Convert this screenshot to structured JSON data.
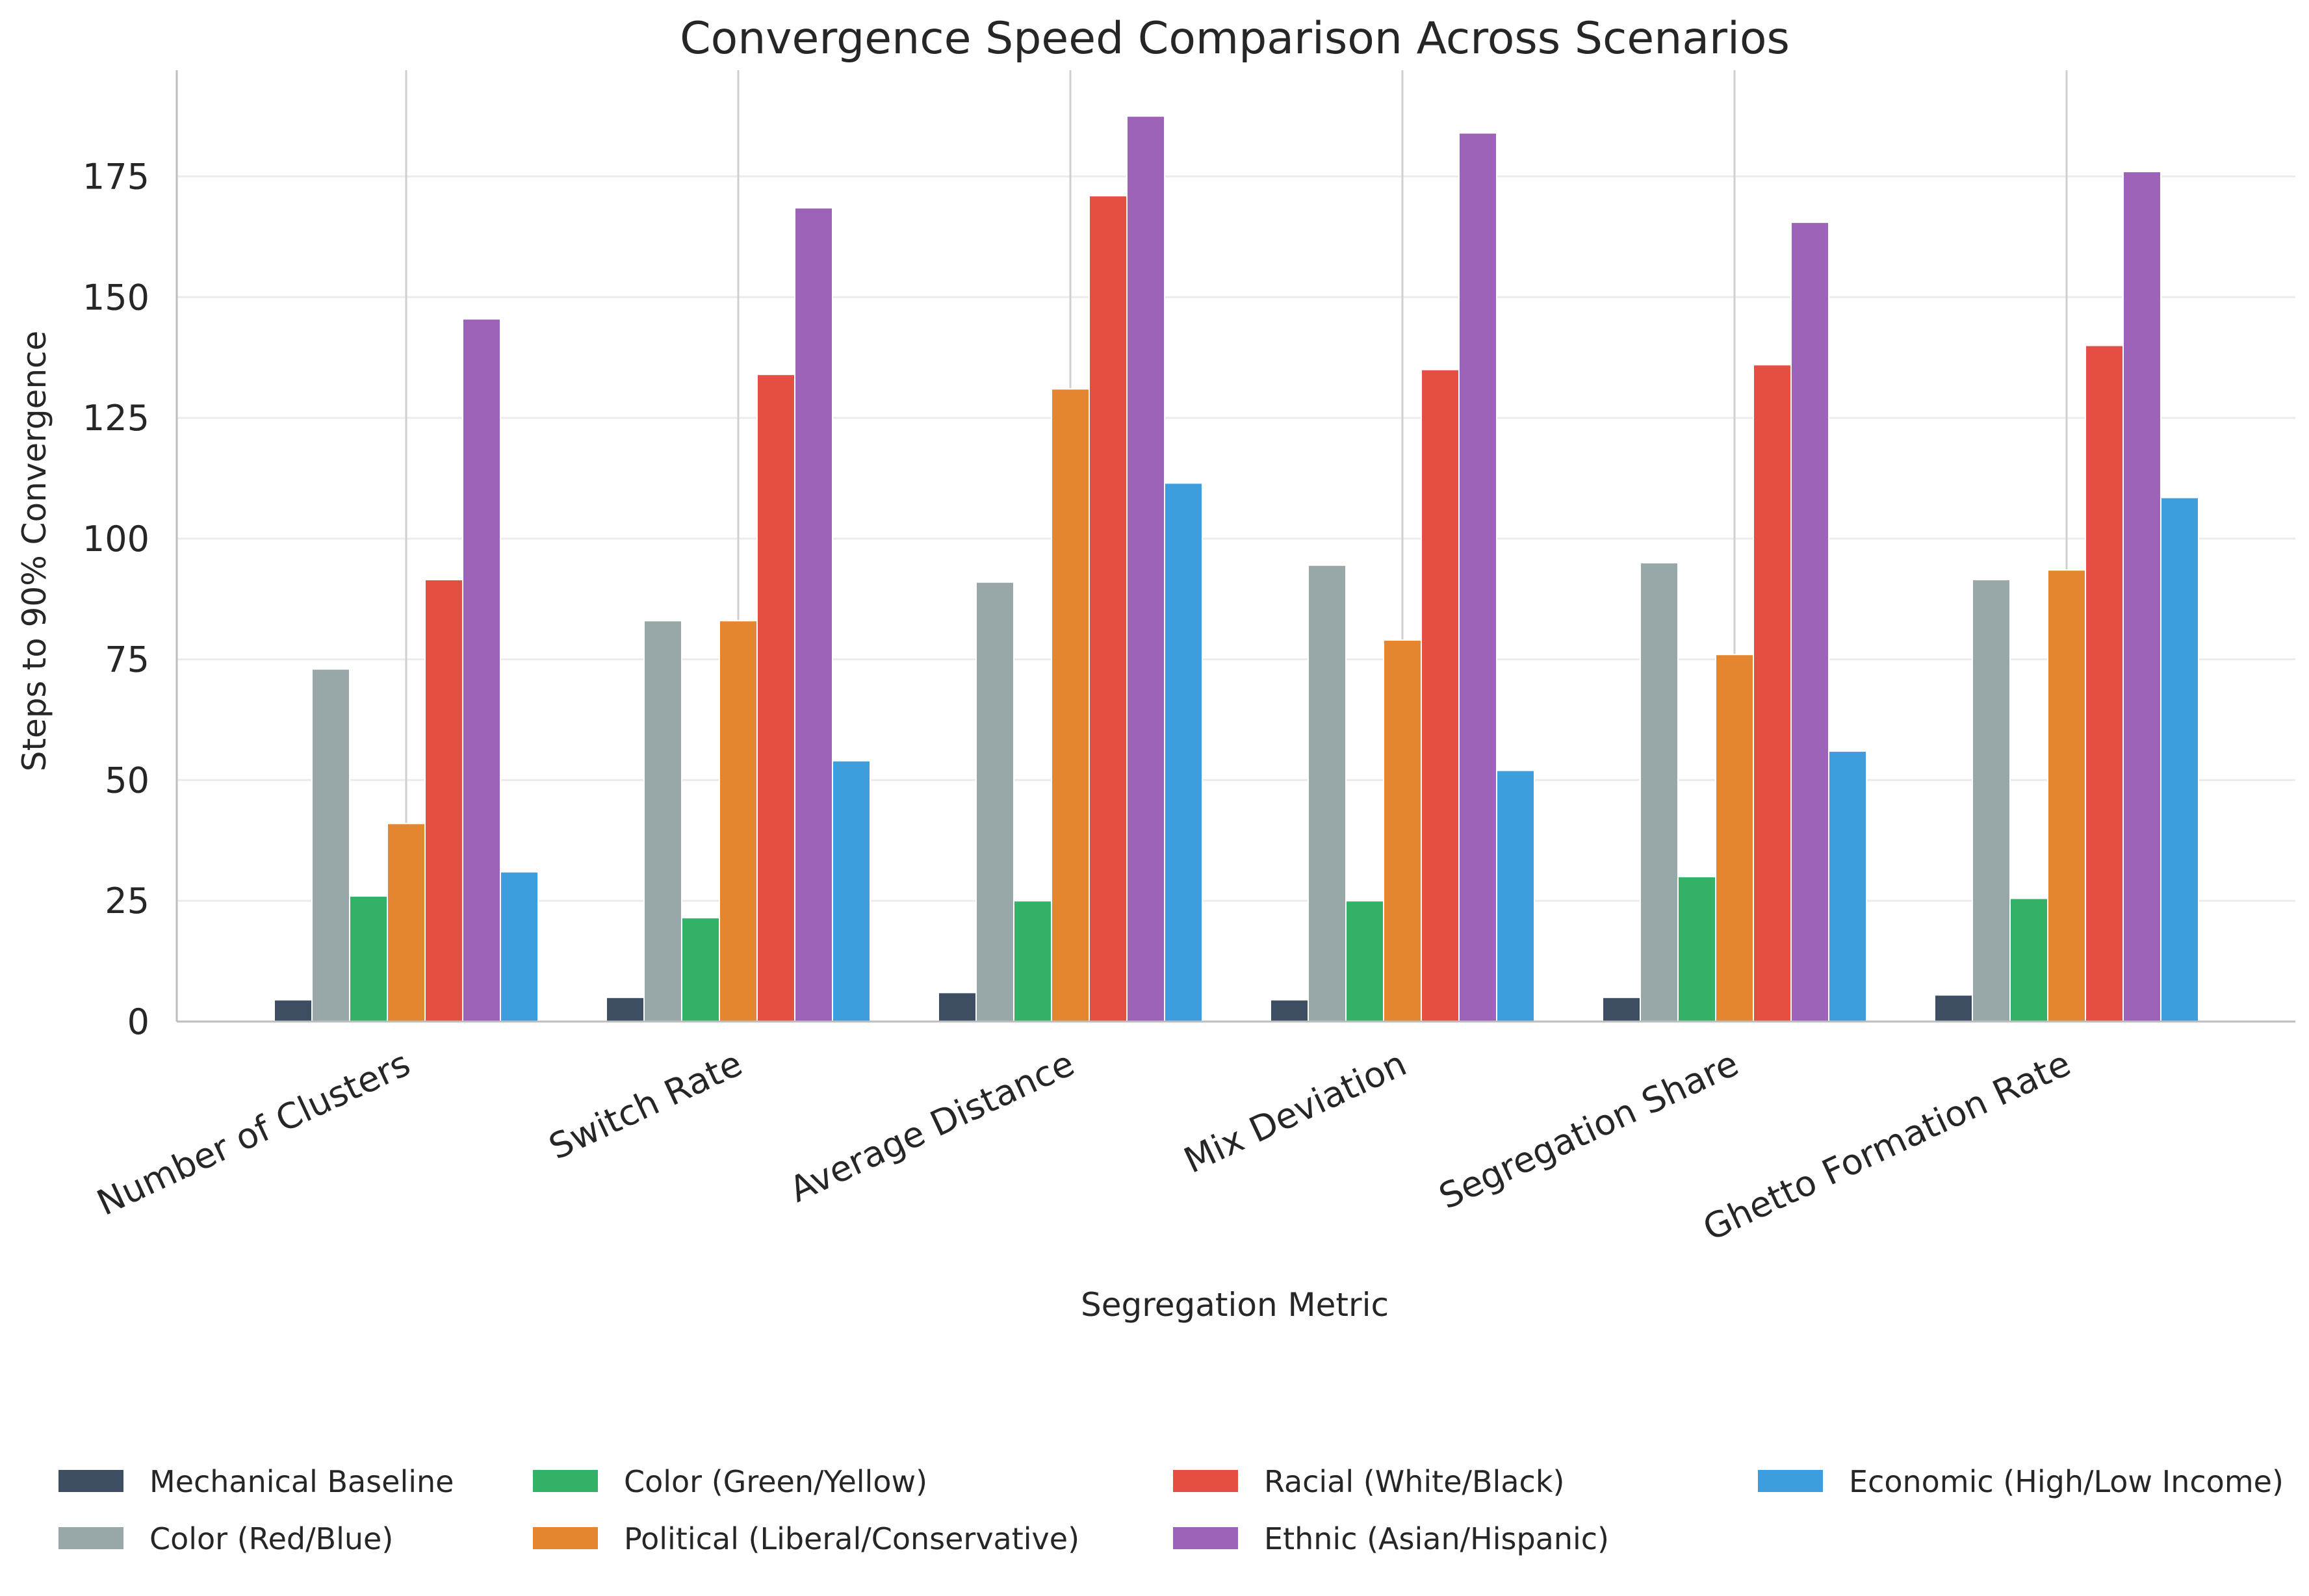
{
  "chart_data": {
    "type": "bar",
    "title": "Convergence Speed Comparison Across Scenarios",
    "xlabel": "Segregation Metric",
    "ylabel": "Steps to 90% Convergence",
    "ylim": [
      0,
      197
    ],
    "yticks": [
      0,
      25,
      50,
      75,
      100,
      125,
      150,
      175
    ],
    "grid": "horizontal",
    "legend_position": "bottom",
    "legend_columns": 4,
    "categories": [
      "Number of Clusters",
      "Switch Rate",
      "Average Distance",
      "Mix Deviation",
      "Segregation Share",
      "Ghetto Formation Rate"
    ],
    "series": [
      {
        "name": "Mechanical Baseline",
        "color": "#3d4e63",
        "values": [
          4.5,
          5,
          6,
          4.5,
          5,
          5.5
        ]
      },
      {
        "name": "Color (Red/Blue)",
        "color": "#98a8a8",
        "values": [
          73,
          83,
          91,
          94.5,
          95,
          91.5
        ]
      },
      {
        "name": "Color (Green/Yellow)",
        "color": "#33b166",
        "values": [
          26,
          21.5,
          25,
          25,
          30,
          25.5
        ]
      },
      {
        "name": "Political (Liberal/Conservative)",
        "color": "#e4862f",
        "values": [
          41,
          83,
          131,
          79,
          76,
          93.5
        ]
      },
      {
        "name": "Racial (White/Black)",
        "color": "#e54e43",
        "values": [
          91.5,
          134,
          171,
          135,
          136,
          140
        ]
      },
      {
        "name": "Ethnic (Asian/Hispanic)",
        "color": "#9d63b8",
        "values": [
          145.5,
          168.5,
          187.5,
          184,
          165.5,
          176
        ]
      },
      {
        "name": "Economic (High/Low Income)",
        "color": "#3d9ddd",
        "values": [
          31,
          54,
          111.5,
          52,
          56,
          108.5
        ]
      }
    ]
  }
}
